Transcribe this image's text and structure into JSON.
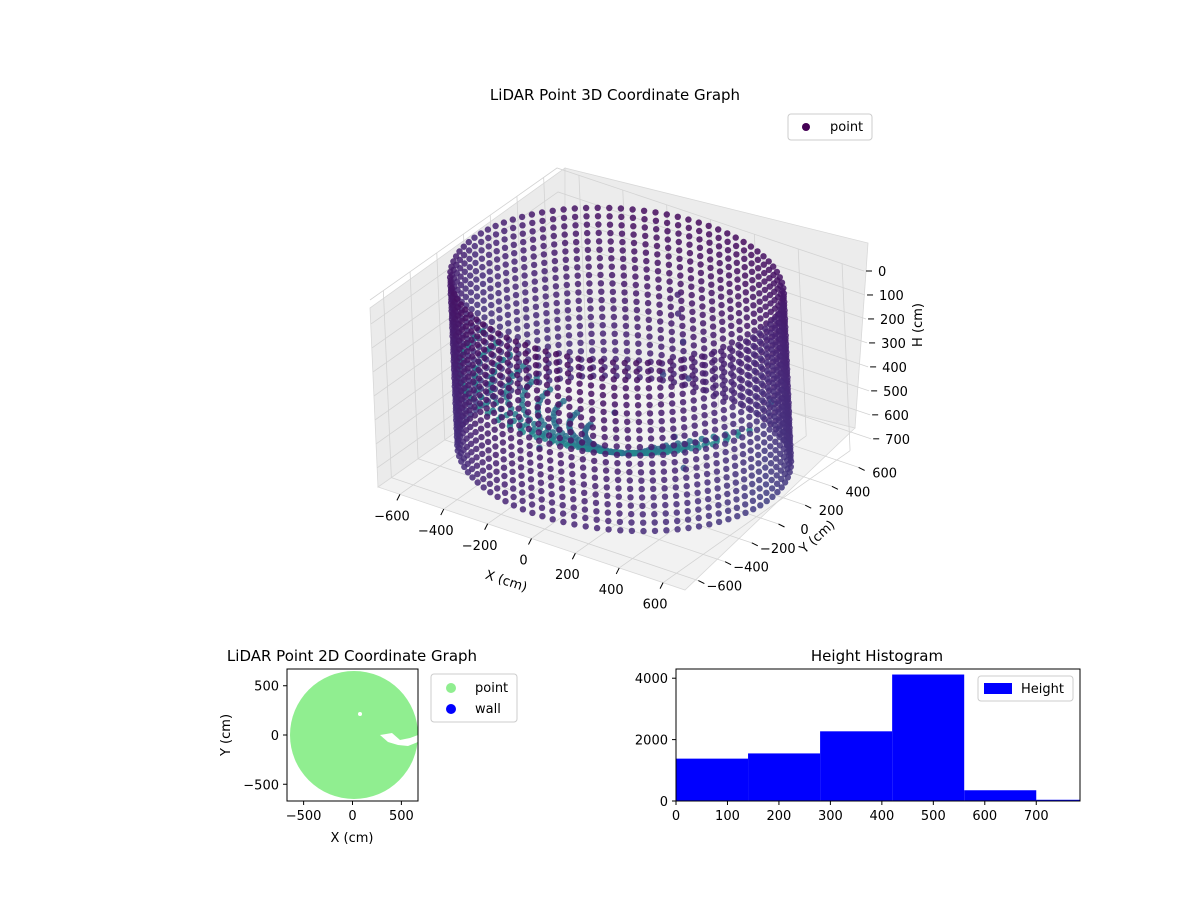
{
  "chart_data": [
    {
      "type": "scatter",
      "projection": "3d",
      "title": "LiDAR Point 3D Coordinate Graph",
      "xlabel": "X (cm)",
      "ylabel": "Y (cm)",
      "zlabel": "H (cm)",
      "xlim": [
        -700,
        700
      ],
      "ylim": [
        -700,
        700
      ],
      "zlim": [
        0,
        780
      ],
      "z_inverted": true,
      "xticks": [
        -600,
        -400,
        -200,
        0,
        200,
        400,
        600
      ],
      "yticks": [
        -600,
        -400,
        -200,
        0,
        200,
        400,
        600
      ],
      "zticks": [
        0,
        100,
        200,
        300,
        400,
        500,
        600,
        700
      ],
      "grid": true,
      "legend": {
        "placement": "upper-right",
        "entries": [
          {
            "label": "point",
            "color": "#440154"
          }
        ]
      },
      "colormap": "viridis",
      "series": [
        {
          "description_values": "Circular wall of LiDAR points radius ~650 cm, heights 0-700 cm, plus interior obstacle cluster",
          "wall_radius": 650,
          "wall_height_range": [
            0,
            700
          ],
          "interior_points": [
            {
              "x": 150,
              "y": 200,
              "h": 150
            },
            {
              "x": 120,
              "y": 250,
              "h": 100
            },
            {
              "x": 180,
              "y": 180,
              "h": 250
            },
            {
              "x": 100,
              "y": 150,
              "h": 400
            },
            {
              "x": 300,
              "y": -100,
              "h": 500
            },
            {
              "x": 400,
              "y": -200,
              "h": 560
            },
            {
              "x": -200,
              "y": -300,
              "h": 620
            },
            {
              "x": -100,
              "y": 100,
              "h": 600
            },
            {
              "x": 500,
              "y": 300,
              "h": 450
            },
            {
              "x": 250,
              "y": 100,
              "h": 350
            }
          ]
        }
      ]
    },
    {
      "type": "scatter",
      "title": "LiDAR Point 2D Coordinate Graph",
      "xlabel": "X (cm)",
      "ylabel": "Y (cm)",
      "xlim": [
        -670,
        670
      ],
      "ylim": [
        -670,
        670
      ],
      "xticks": [
        -500,
        0,
        500
      ],
      "yticks": [
        -500,
        0,
        500
      ],
      "legend": {
        "placement": "outside-right",
        "entries": [
          {
            "label": "point",
            "color": "#90ee90"
          },
          {
            "label": "wall",
            "color": "#0000ff"
          }
        ]
      },
      "series": [
        {
          "name": "point",
          "color": "#90ee90",
          "shape": "filled disk radius ~650 cm with small notch near (350, -40)"
        }
      ]
    },
    {
      "type": "bar",
      "subtype": "histogram",
      "title": "Height Histogram",
      "xlim": [
        0,
        785
      ],
      "ylim": [
        0,
        4300
      ],
      "xticks": [
        0,
        100,
        200,
        300,
        400,
        500,
        600,
        700
      ],
      "yticks": [
        0,
        2000,
        4000
      ],
      "legend": {
        "placement": "top-right",
        "entries": [
          {
            "label": "Height",
            "color": "#0000ff"
          }
        ]
      },
      "bin_edges": [
        0,
        140,
        280,
        420,
        560,
        700,
        785
      ],
      "values": [
        1380,
        1550,
        2270,
        4120,
        350,
        40
      ],
      "color": "#0000ff"
    }
  ]
}
